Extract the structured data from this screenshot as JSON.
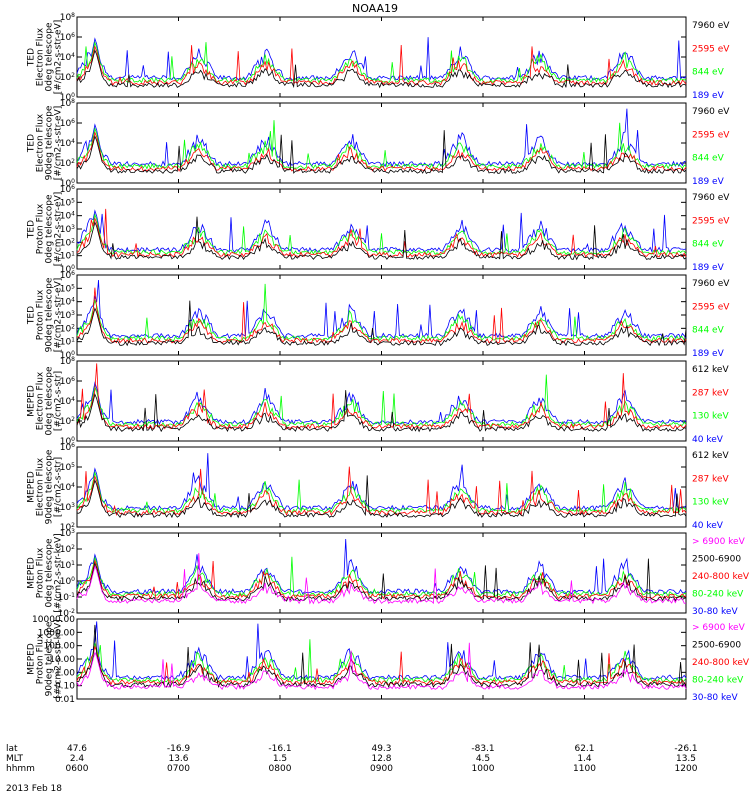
{
  "title": "NOAA19",
  "date_label": "2013 Feb 18",
  "xaxis": {
    "row_labels": [
      "lat",
      "MLT",
      "hhmm"
    ],
    "columns": [
      {
        "lat": "47.6",
        "mlt": "2.4",
        "hhmm": "0600"
      },
      {
        "lat": "-16.9",
        "mlt": "13.6",
        "hhmm": "0700"
      },
      {
        "lat": "-16.1",
        "mlt": "1.5",
        "hhmm": "0800"
      },
      {
        "lat": "49.3",
        "mlt": "12.8",
        "hhmm": "0900"
      },
      {
        "lat": "-83.1",
        "mlt": "4.5",
        "hhmm": "1000"
      },
      {
        "lat": "62.1",
        "mlt": "1.4",
        "hhmm": "1100"
      },
      {
        "lat": "-26.1",
        "mlt": "13.5",
        "hhmm": "1200"
      }
    ]
  },
  "colors": {
    "black": "#000000",
    "red": "#ff0000",
    "green": "#00ff00",
    "blue": "#0000ff",
    "magenta": "#ff00ff"
  },
  "chart_data": [
    {
      "type": "line",
      "ylabel_lines": [
        "TED",
        "Electron Flux",
        "0deg telescope",
        "[#/cm2-s-str-eV]"
      ],
      "log": true,
      "yticks": [
        "10^0",
        "10^2",
        "10^4",
        "10^6",
        "10^8"
      ],
      "legend": [
        {
          "name": "7960 eV",
          "color": "#000000"
        },
        {
          "name": "2595 eV",
          "color": "#ff0000"
        },
        {
          "name": "844 eV",
          "color": "#00ff00"
        },
        {
          "name": "189 eV",
          "color": "#0000ff"
        }
      ]
    },
    {
      "type": "line",
      "ylabel_lines": [
        "TED",
        "Electron Flux",
        "90deg telescope",
        "[#/cm2-s-str-eV]"
      ],
      "log": true,
      "yticks": [
        "10^0",
        "10^2",
        "10^4",
        "10^6",
        "10^8"
      ],
      "legend": [
        {
          "name": "7960 eV",
          "color": "#000000"
        },
        {
          "name": "2595 eV",
          "color": "#ff0000"
        },
        {
          "name": "844 eV",
          "color": "#00ff00"
        },
        {
          "name": "189 eV",
          "color": "#0000ff"
        }
      ]
    },
    {
      "type": "line",
      "ylabel_lines": [
        "TED",
        "Proton Flux",
        "0deg telescope",
        "[#/cm2-s-str-eV]"
      ],
      "log": true,
      "yticks": [
        "10^0",
        "10^1",
        "10^2",
        "10^3",
        "10^4",
        "10^5",
        "10^6"
      ],
      "legend": [
        {
          "name": "7960 eV",
          "color": "#000000"
        },
        {
          "name": "2595 eV",
          "color": "#ff0000"
        },
        {
          "name": "844 eV",
          "color": "#00ff00"
        },
        {
          "name": "189 eV",
          "color": "#0000ff"
        }
      ]
    },
    {
      "type": "line",
      "ylabel_lines": [
        "TED",
        "Proton Flux",
        "90deg telescope",
        "[#/cm2-s-str-eV]"
      ],
      "log": true,
      "yticks": [
        "10^0",
        "10^1",
        "10^2",
        "10^3",
        "10^4",
        "10^5",
        "10^6"
      ],
      "legend": [
        {
          "name": "7960 eV",
          "color": "#000000"
        },
        {
          "name": "2595 eV",
          "color": "#ff0000"
        },
        {
          "name": "844 eV",
          "color": "#00ff00"
        },
        {
          "name": "189 eV",
          "color": "#0000ff"
        }
      ]
    },
    {
      "type": "line",
      "ylabel_lines": [
        "MEPED",
        "Electron Flux",
        "0deg telescope",
        "[#/cm2-s-str]"
      ],
      "log": true,
      "yticks": [
        "10^0",
        "10^2",
        "10^4",
        "10^6",
        "10^8"
      ],
      "legend": [
        {
          "name": "612 keV",
          "color": "#000000"
        },
        {
          "name": "287 keV",
          "color": "#ff0000"
        },
        {
          "name": "130 keV",
          "color": "#00ff00"
        },
        {
          "name": "40 keV",
          "color": "#0000ff"
        }
      ]
    },
    {
      "type": "line",
      "ylabel_lines": [
        "MEPED",
        "Electron Flux",
        "90deg telescope",
        "[#/cm2-s-str]"
      ],
      "log": true,
      "yticks": [
        "10^2",
        "10^3",
        "10^4",
        "10^5",
        "10^6"
      ],
      "legend": [
        {
          "name": "612 keV",
          "color": "#000000"
        },
        {
          "name": "287 keV",
          "color": "#ff0000"
        },
        {
          "name": "130 keV",
          "color": "#00ff00"
        },
        {
          "name": "40 keV",
          "color": "#0000ff"
        }
      ]
    },
    {
      "type": "line",
      "ylabel_lines": [
        "MEPED",
        "Proton Flux",
        "0deg telescope",
        "[#/cm2-s-str-keV]"
      ],
      "log": true,
      "yticks": [
        "10^-2",
        "10^-1",
        "10^0",
        "10^1",
        "10^2",
        "10^3"
      ],
      "legend": [
        {
          "name": "> 6900 keV",
          "color": "#ff00ff"
        },
        {
          "name": "2500-6900",
          "color": "#000000"
        },
        {
          "name": "240-800 keV",
          "color": "#ff0000"
        },
        {
          "name": "80-240 keV",
          "color": "#00ff00"
        },
        {
          "name": "30-80 keV",
          "color": "#0000ff"
        }
      ]
    },
    {
      "type": "line",
      "ylabel_lines": [
        "MEPED",
        "Proton Flux",
        "90deg telescope",
        "[#/cm2-s-str-keV]"
      ],
      "log": true,
      "yticks": [
        "0.01",
        "0.10",
        "1.00",
        "10.00",
        "100.00",
        "1000.00",
        "10000.00"
      ],
      "legend": [
        {
          "name": "> 6900 keV",
          "color": "#ff00ff"
        },
        {
          "name": "2500-6900",
          "color": "#000000"
        },
        {
          "name": "240-800 keV",
          "color": "#ff0000"
        },
        {
          "name": "80-240 keV",
          "color": "#00ff00"
        },
        {
          "name": "30-80 keV",
          "color": "#0000ff"
        }
      ]
    }
  ]
}
